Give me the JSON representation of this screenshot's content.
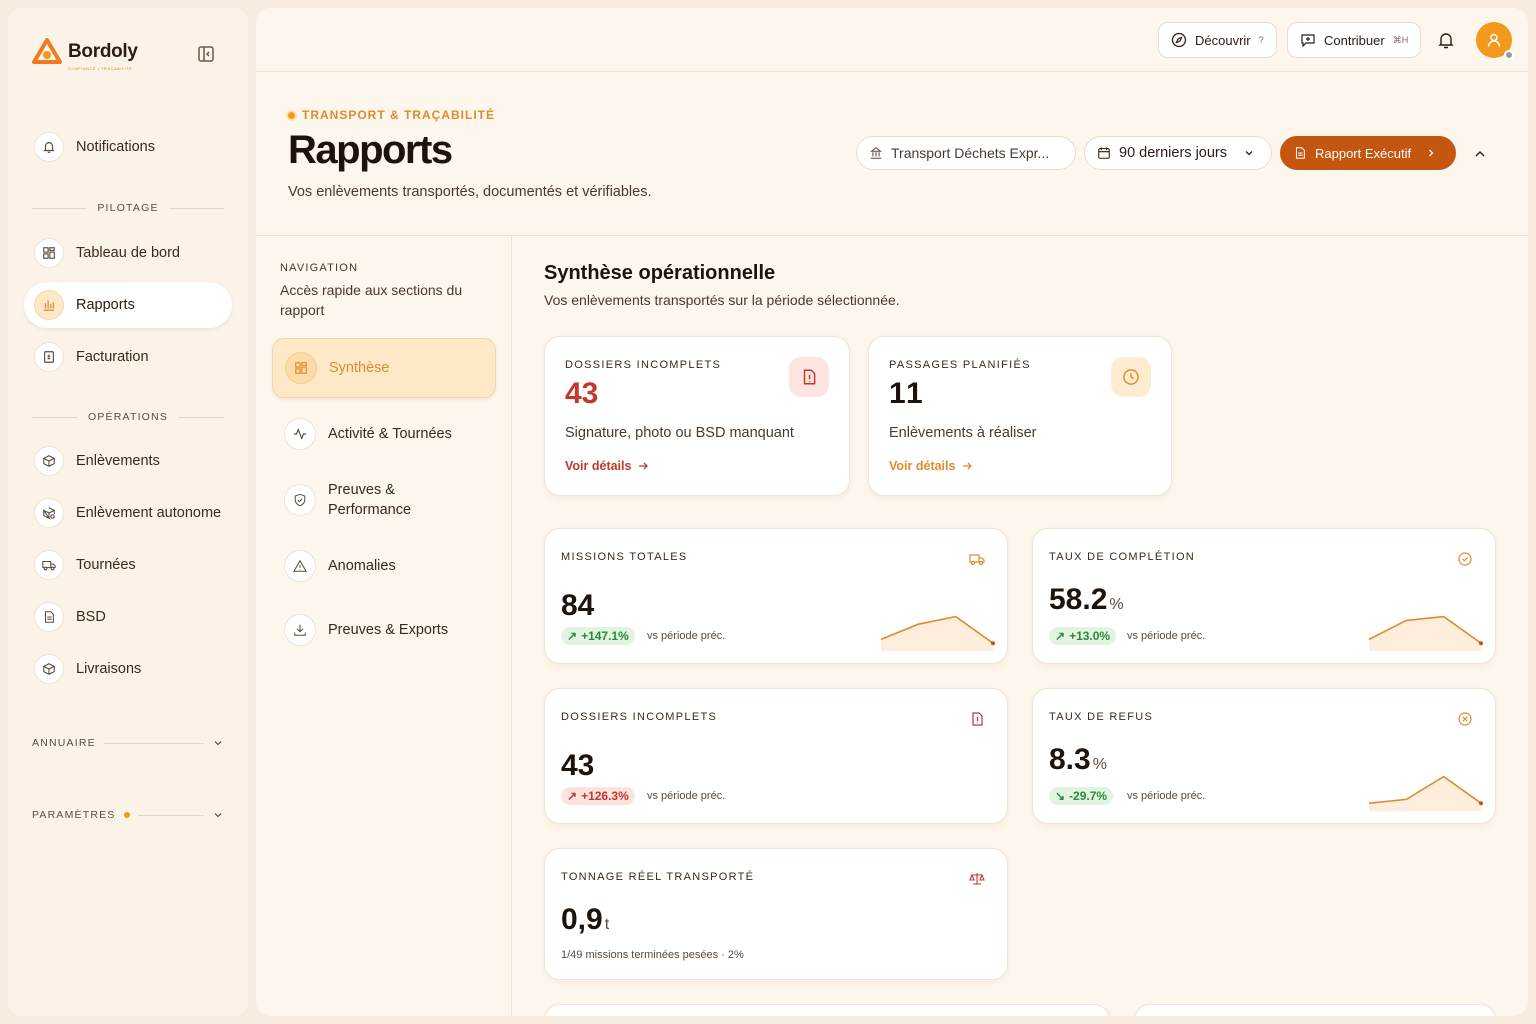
{
  "brand": {
    "name": "Bordoly",
    "tagline": "CONFIANCE • TRAÇABILITÉ"
  },
  "sidebar": {
    "notifications": "Notifications",
    "sections": {
      "pilotage": "PILOTAGE",
      "operations": "OPÉRATIONS",
      "annuaire": "ANNUAIRE",
      "parametres": "PARAMÈTRES"
    },
    "items": [
      {
        "label": "Tableau de bord",
        "icon": "grid-icon"
      },
      {
        "label": "Rapports",
        "icon": "bar-chart-icon",
        "active": true
      },
      {
        "label": "Facturation",
        "icon": "invoice-icon"
      },
      {
        "label": "Enlèvements",
        "icon": "package-icon"
      },
      {
        "label": "Enlèvement autonome",
        "icon": "package-cog-icon"
      },
      {
        "label": "Tournées",
        "icon": "truck-icon"
      },
      {
        "label": "BSD",
        "icon": "document-icon"
      },
      {
        "label": "Livraisons",
        "icon": "package-icon"
      }
    ]
  },
  "topbar": {
    "discover": "Découvrir",
    "discover_kbd": "?",
    "contribute": "Contribuer",
    "contribute_kbd": "⌘H"
  },
  "header": {
    "eyebrow": "TRANSPORT & TRAÇABILITÉ",
    "title": "Rapports",
    "subtitle": "Vos enlèvements transportés, documentés et vérifiables.",
    "company": "Transport Déchets Expr...",
    "period": "90 derniers jours",
    "report_button": "Rapport Exécutif"
  },
  "subnav": {
    "title": "NAVIGATION",
    "description": "Accès rapide aux sections du rapport",
    "items": [
      {
        "label": "Synthèse",
        "active": true
      },
      {
        "label": "Activité & Tournées"
      },
      {
        "label": "Preuves & Performance"
      },
      {
        "label": "Anomalies"
      },
      {
        "label": "Preuves & Exports"
      }
    ]
  },
  "content": {
    "title": "Synthèse opérationnelle",
    "subtitle": "Vos enlèvements transportés sur la période sélectionnée.",
    "alerts": [
      {
        "kicker": "DOSSIERS INCOMPLETS",
        "value": "43",
        "desc": "Signature, photo ou BSD manquant",
        "link": "Voir détails",
        "color": "#c0392b",
        "icon": "file-alert-icon"
      },
      {
        "kicker": "PASSAGES PLANIFIÉS",
        "value": "11",
        "desc": "Enlèvements à réaliser",
        "link": "Voir détails",
        "color": "#e08a2e",
        "icon": "clock-icon"
      }
    ],
    "metrics": [
      {
        "kicker": "MISSIONS TOTALES",
        "value": "84",
        "unit": "",
        "badge": "+147.1%",
        "badge_type": "up",
        "vs": "vs période préc.",
        "spark": [
          2,
          6,
          8,
          1
        ],
        "icon": "truck-icon"
      },
      {
        "kicker": "TAUX DE COMPLÉTION",
        "value": "58.2",
        "unit": "%",
        "badge": "+13.0%",
        "badge_type": "up",
        "vs": "vs période préc.",
        "spark": [
          2,
          7,
          8,
          1
        ],
        "icon": "check-circle-icon"
      },
      {
        "kicker": "DOSSIERS INCOMPLETS",
        "value": "43",
        "unit": "",
        "badge": "+126.3%",
        "badge_type": "bad",
        "vs": "vs période préc.",
        "spark": [],
        "icon": "file-alert-icon"
      },
      {
        "kicker": "TAUX DE REFUS",
        "value": "8.3",
        "unit": "%",
        "badge": "-29.7%",
        "badge_type": "down",
        "vs": "vs période préc.",
        "spark": [
          1,
          2,
          8,
          1
        ],
        "icon": "x-circle-icon"
      },
      {
        "kicker": "TONNAGE RÉEL TRANSPORTÉ",
        "value": "0,9",
        "unit": "t",
        "note": "1/49 missions terminées pesées · 2%",
        "icon": "scale-icon"
      }
    ]
  },
  "colors": {
    "accent": "#f29a1e",
    "primary": "#c5560f",
    "danger": "#c0392b",
    "success": "#2b8a3e"
  }
}
